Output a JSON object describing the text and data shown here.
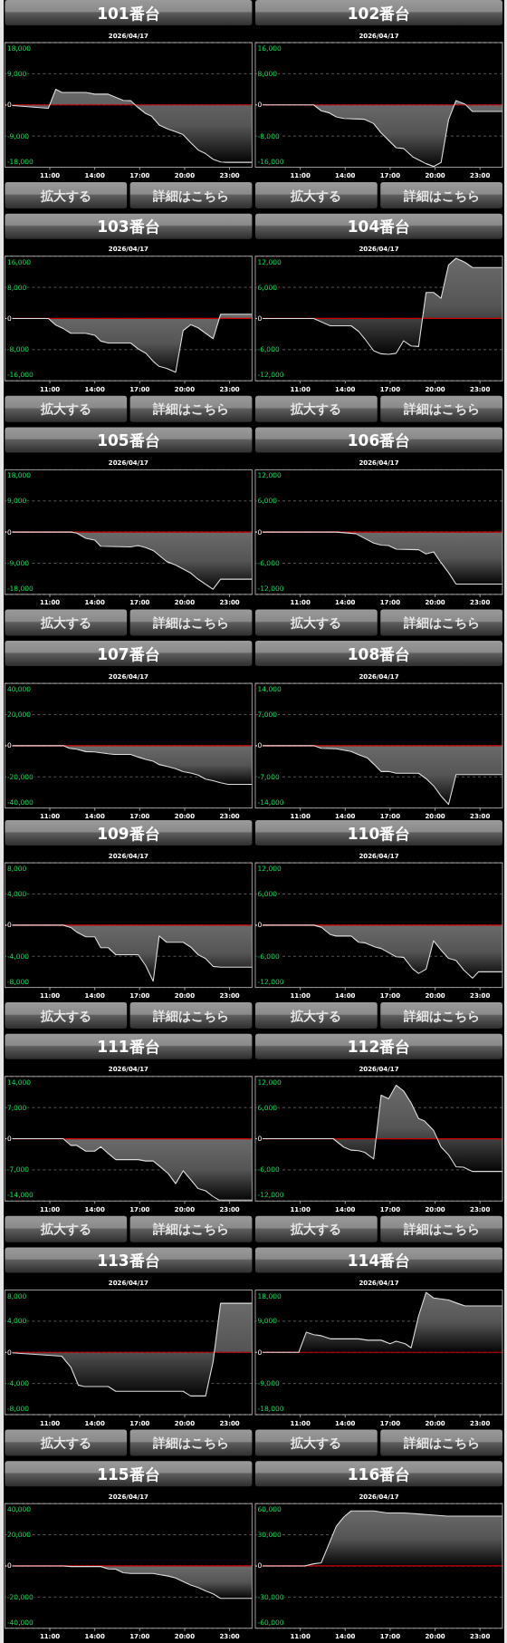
{
  "chart_data": [
    {
      "type": "area",
      "title": "101番台",
      "subtitle": "2026/04/17",
      "color": "#dddddd",
      "grid": "y",
      "xlim": [
        8,
        24.5
      ],
      "xticks": [
        {
          "value": 11,
          "label": "11:00"
        },
        {
          "value": 14,
          "label": "14:00"
        },
        {
          "value": 17,
          "label": "17:00"
        },
        {
          "value": 20,
          "label": "20:00"
        },
        {
          "value": 23,
          "label": "23:00"
        }
      ],
      "ylim": [
        -18000,
        18000
      ],
      "yticks": [
        {
          "value": 18000,
          "label": "18,000"
        },
        {
          "value": 9000,
          "label": "9,000"
        },
        {
          "value": 0,
          "label": "0"
        },
        {
          "value": -9000,
          "label": "-9,000"
        },
        {
          "value": -18000,
          "label": "-18,000"
        }
      ],
      "ref_lines": [
        {
          "axis": "y",
          "value": 0,
          "color": "#cc0000"
        }
      ],
      "annotations": [
        "拡大する",
        "詳細はこちら"
      ],
      "x": [
        8,
        10.9,
        11.4,
        11.8,
        13.4,
        14.0,
        14.9,
        15.9,
        16.4,
        16.9,
        17.4,
        17.8,
        18.3,
        18.9,
        19.3,
        19.9,
        20.4,
        20.9,
        21.4,
        21.9,
        22.4,
        22.8,
        24.5
      ],
      "values": [
        0,
        -1000,
        4500,
        3600,
        3600,
        3100,
        3100,
        1300,
        1200,
        -800,
        -2500,
        -3300,
        -5800,
        -7000,
        -7600,
        -8600,
        -10900,
        -13000,
        -14100,
        -15700,
        -16500,
        -16600,
        -16600
      ]
    },
    {
      "type": "area",
      "title": "102番台",
      "subtitle": "2026/04/17",
      "color": "#dddddd",
      "grid": "y",
      "xlim": [
        8,
        24.5
      ],
      "xticks": [
        {
          "value": 11,
          "label": "11:00"
        },
        {
          "value": 14,
          "label": "14:00"
        },
        {
          "value": 17,
          "label": "17:00"
        },
        {
          "value": 20,
          "label": "20:00"
        },
        {
          "value": 23,
          "label": "23:00"
        }
      ],
      "ylim": [
        -16000,
        16000
      ],
      "yticks": [
        {
          "value": 16000,
          "label": "16,000"
        },
        {
          "value": 8000,
          "label": "8,000"
        },
        {
          "value": 0,
          "label": "0"
        },
        {
          "value": -8000,
          "label": "-8,000"
        },
        {
          "value": -16000,
          "label": "-16,000"
        }
      ],
      "ref_lines": [
        {
          "axis": "y",
          "value": 0,
          "color": "#cc0000"
        }
      ],
      "annotations": [
        "拡大する",
        "詳細はこちら"
      ],
      "x": [
        8,
        11.9,
        12.4,
        12.9,
        13.4,
        13.9,
        15.3,
        15.9,
        16.4,
        17.4,
        17.9,
        18.5,
        19.0,
        19.4,
        19.9,
        20.4,
        20.9,
        21.4,
        22.0,
        22.5,
        24.5
      ],
      "values": [
        0,
        0,
        -1500,
        -2000,
        -3100,
        -3500,
        -3700,
        -4800,
        -7200,
        -11000,
        -11200,
        -13300,
        -14300,
        -15100,
        -15800,
        -14800,
        -3800,
        1100,
        200,
        -1700,
        -1700
      ]
    },
    {
      "type": "area",
      "title": "103番台",
      "subtitle": "2026/04/17",
      "color": "#dddddd",
      "grid": "y",
      "xlim": [
        8,
        24.5
      ],
      "xticks": [
        {
          "value": 11,
          "label": "11:00"
        },
        {
          "value": 14,
          "label": "14:00"
        },
        {
          "value": 17,
          "label": "17:00"
        },
        {
          "value": 20,
          "label": "20:00"
        },
        {
          "value": 23,
          "label": "23:00"
        }
      ],
      "ylim": [
        -16000,
        16000
      ],
      "yticks": [
        {
          "value": 16000,
          "label": "16,000"
        },
        {
          "value": 8000,
          "label": "8,000"
        },
        {
          "value": 0,
          "label": "0"
        },
        {
          "value": -8000,
          "label": "-8,000"
        },
        {
          "value": -16000,
          "label": "-16,000"
        }
      ],
      "ref_lines": [
        {
          "axis": "y",
          "value": 0,
          "color": "#cc0000"
        }
      ],
      "annotations": [
        "拡大する",
        "詳細はこちら"
      ],
      "x": [
        8,
        10.9,
        11.4,
        11.9,
        12.4,
        13.4,
        14.0,
        14.4,
        14.9,
        16.4,
        16.9,
        17.4,
        17.9,
        18.3,
        18.8,
        19.4,
        19.9,
        20.4,
        20.9,
        21.4,
        21.9,
        22.4,
        24.5
      ],
      "values": [
        0,
        0,
        -1700,
        -2600,
        -3800,
        -3800,
        -4300,
        -5800,
        -6300,
        -6300,
        -7800,
        -8900,
        -11000,
        -12300,
        -12800,
        -13800,
        -3100,
        -1600,
        -2400,
        -3800,
        -5200,
        1100,
        1100
      ]
    },
    {
      "type": "area",
      "title": "104番台",
      "subtitle": "2026/04/17",
      "color": "#dddddd",
      "grid": "y",
      "xlim": [
        8,
        24.5
      ],
      "xticks": [
        {
          "value": 11,
          "label": "11:00"
        },
        {
          "value": 14,
          "label": "14:00"
        },
        {
          "value": 17,
          "label": "17:00"
        },
        {
          "value": 20,
          "label": "20:00"
        },
        {
          "value": 23,
          "label": "23:00"
        }
      ],
      "ylim": [
        -12000,
        12000
      ],
      "yticks": [
        {
          "value": 12000,
          "label": "12,000"
        },
        {
          "value": 6000,
          "label": "6,000"
        },
        {
          "value": 0,
          "label": "0"
        },
        {
          "value": -6000,
          "label": "-6,000"
        },
        {
          "value": -12000,
          "label": "-12,000"
        }
      ],
      "ref_lines": [
        {
          "axis": "y",
          "value": 0,
          "color": "#cc0000"
        }
      ],
      "annotations": [
        "拡大する",
        "詳細はこちら"
      ],
      "x": [
        8,
        11.9,
        13.0,
        14.4,
        14.9,
        15.3,
        15.9,
        16.4,
        16.9,
        17.4,
        17.9,
        18.4,
        18.9,
        19.4,
        19.9,
        20.4,
        20.9,
        21.4,
        22.0,
        22.5,
        24.5
      ],
      "values": [
        0,
        0,
        -1400,
        -1400,
        -2500,
        -3900,
        -6200,
        -6800,
        -6900,
        -6700,
        -4300,
        -5300,
        -5400,
        5000,
        5000,
        3900,
        10300,
        11600,
        10800,
        9800,
        9800
      ]
    },
    {
      "type": "area",
      "title": "105番台",
      "subtitle": "2026/04/17",
      "color": "#dddddd",
      "grid": "y",
      "xlim": [
        8,
        24.5
      ],
      "xticks": [
        {
          "value": 11,
          "label": "11:00"
        },
        {
          "value": 14,
          "label": "14:00"
        },
        {
          "value": 17,
          "label": "17:00"
        },
        {
          "value": 20,
          "label": "20:00"
        },
        {
          "value": 23,
          "label": "23:00"
        }
      ],
      "ylim": [
        -18000,
        18000
      ],
      "yticks": [
        {
          "value": 18000,
          "label": "18,000"
        },
        {
          "value": 9000,
          "label": "9,000"
        },
        {
          "value": 0,
          "label": "0"
        },
        {
          "value": -9000,
          "label": "-9,000"
        },
        {
          "value": -18000,
          "label": "-18,000"
        }
      ],
      "ref_lines": [
        {
          "axis": "y",
          "value": 0,
          "color": "#cc0000"
        }
      ],
      "annotations": [
        "拡大する",
        "詳細はこちら"
      ],
      "x": [
        8,
        12.4,
        12.8,
        13.4,
        14.0,
        14.4,
        16.4,
        16.9,
        17.4,
        17.9,
        18.8,
        19.4,
        20.4,
        20.8,
        21.4,
        21.9,
        22.4,
        24.5
      ],
      "values": [
        0,
        0,
        -300,
        -1800,
        -2300,
        -4100,
        -4300,
        -3900,
        -4500,
        -5300,
        -8500,
        -9500,
        -11800,
        -13300,
        -15100,
        -16500,
        -13600,
        -13600
      ]
    },
    {
      "type": "area",
      "title": "106番台",
      "subtitle": "2026/04/17",
      "color": "#dddddd",
      "grid": "y",
      "xlim": [
        8,
        24.5
      ],
      "xticks": [
        {
          "value": 11,
          "label": "11:00"
        },
        {
          "value": 14,
          "label": "14:00"
        },
        {
          "value": 17,
          "label": "17:00"
        },
        {
          "value": 20,
          "label": "20:00"
        },
        {
          "value": 23,
          "label": "23:00"
        }
      ],
      "ylim": [
        -12000,
        12000
      ],
      "yticks": [
        {
          "value": 12000,
          "label": "12,000"
        },
        {
          "value": 6000,
          "label": "6,000"
        },
        {
          "value": 0,
          "label": "0"
        },
        {
          "value": -6000,
          "label": "-6,000"
        },
        {
          "value": -12000,
          "label": "-12,000"
        }
      ],
      "ref_lines": [
        {
          "axis": "y",
          "value": 0,
          "color": "#cc0000"
        }
      ],
      "annotations": [
        "拡大する",
        "詳細はこちら"
      ],
      "x": [
        8,
        13.4,
        14.7,
        15.9,
        16.4,
        16.9,
        17.4,
        18.9,
        19.4,
        19.9,
        20.4,
        20.9,
        21.4,
        24.5
      ],
      "values": [
        0,
        0,
        -300,
        -2100,
        -2500,
        -2600,
        -3300,
        -3400,
        -4200,
        -3800,
        -5900,
        -7800,
        -10000,
        -10000
      ]
    },
    {
      "type": "area",
      "title": "107番台",
      "subtitle": "2026/04/17",
      "color": "#dddddd",
      "grid": "y",
      "xlim": [
        8,
        24.5
      ],
      "xticks": [
        {
          "value": 11,
          "label": "11:00"
        },
        {
          "value": 14,
          "label": "14:00"
        },
        {
          "value": 17,
          "label": "17:00"
        },
        {
          "value": 20,
          "label": "20:00"
        },
        {
          "value": 23,
          "label": "23:00"
        }
      ],
      "ylim": [
        -40000,
        40000
      ],
      "yticks": [
        {
          "value": 40000,
          "label": "40,000"
        },
        {
          "value": 20000,
          "label": "20,000"
        },
        {
          "value": 0,
          "label": "0"
        },
        {
          "value": -20000,
          "label": "-20,000"
        },
        {
          "value": -40000,
          "label": "-40,000"
        }
      ],
      "ref_lines": [
        {
          "axis": "y",
          "value": 0,
          "color": "#cc0000"
        }
      ],
      "x": [
        8,
        11.9,
        12.3,
        12.8,
        13.4,
        14.0,
        14.9,
        15.3,
        16.4,
        16.9,
        17.4,
        17.9,
        18.3,
        18.9,
        19.4,
        19.9,
        20.4,
        20.9,
        21.4,
        21.9,
        22.4,
        22.9,
        24.5
      ],
      "values": [
        0,
        0,
        -1700,
        -2300,
        -3800,
        -4000,
        -5200,
        -5600,
        -5600,
        -7300,
        -8800,
        -10000,
        -12100,
        -13500,
        -14800,
        -16700,
        -17500,
        -18800,
        -21500,
        -22500,
        -23800,
        -24800,
        -24800
      ]
    },
    {
      "type": "area",
      "title": "108番台",
      "subtitle": "2026/04/17",
      "color": "#dddddd",
      "grid": "y",
      "xlim": [
        8,
        24.5
      ],
      "xticks": [
        {
          "value": 11,
          "label": "11:00"
        },
        {
          "value": 14,
          "label": "14:00"
        },
        {
          "value": 17,
          "label": "17:00"
        },
        {
          "value": 20,
          "label": "20:00"
        },
        {
          "value": 23,
          "label": "23:00"
        }
      ],
      "ylim": [
        -14000,
        14000
      ],
      "yticks": [
        {
          "value": 14000,
          "label": "14,000"
        },
        {
          "value": 7000,
          "label": "7,000"
        },
        {
          "value": 0,
          "label": "0"
        },
        {
          "value": -7000,
          "label": "-7,000"
        },
        {
          "value": -14000,
          "label": "-14,000"
        }
      ],
      "ref_lines": [
        {
          "axis": "y",
          "value": 0,
          "color": "#cc0000"
        }
      ],
      "x": [
        8,
        11.9,
        12.4,
        13.4,
        14.4,
        14.9,
        15.5,
        15.9,
        16.4,
        16.9,
        17.4,
        18.9,
        19.4,
        19.9,
        20.4,
        20.9,
        21.4,
        24.5
      ],
      "values": [
        0,
        0,
        -600,
        -700,
        -1300,
        -2000,
        -2800,
        -4100,
        -5800,
        -5800,
        -6200,
        -6200,
        -7400,
        -9000,
        -11300,
        -13200,
        -6500,
        -6500
      ]
    },
    {
      "type": "area",
      "title": "109番台",
      "subtitle": "2026/04/17",
      "color": "#dddddd",
      "grid": "y",
      "xlim": [
        8,
        24.5
      ],
      "xticks": [
        {
          "value": 11,
          "label": "11:00"
        },
        {
          "value": 14,
          "label": "14:00"
        },
        {
          "value": 17,
          "label": "17:00"
        },
        {
          "value": 20,
          "label": "20:00"
        },
        {
          "value": 23,
          "label": "23:00"
        }
      ],
      "ylim": [
        -8000,
        8000
      ],
      "yticks": [
        {
          "value": 8000,
          "label": "8,000"
        },
        {
          "value": 4000,
          "label": "4,000"
        },
        {
          "value": 0,
          "label": "0"
        },
        {
          "value": -4000,
          "label": "-4,000"
        },
        {
          "value": -8000,
          "label": "-8,000"
        }
      ],
      "ref_lines": [
        {
          "axis": "y",
          "value": 0,
          "color": "#cc0000"
        }
      ],
      "annotations": [
        "拡大する",
        "詳細はこちら"
      ],
      "x": [
        8,
        11.9,
        12.4,
        12.8,
        13.4,
        14.0,
        14.4,
        14.9,
        15.4,
        16.9,
        17.4,
        17.9,
        18.3,
        18.8,
        19.9,
        20.4,
        20.9,
        21.4,
        21.9,
        22.4,
        23.0,
        24.5
      ],
      "values": [
        0,
        0,
        -300,
        -900,
        -1500,
        -1500,
        -2900,
        -2900,
        -3800,
        -3800,
        -5200,
        -7200,
        -1400,
        -2200,
        -2200,
        -2800,
        -3800,
        -4300,
        -5300,
        -5400,
        -5400,
        -5400
      ]
    },
    {
      "type": "area",
      "title": "110番台",
      "subtitle": "2026/04/17",
      "color": "#dddddd",
      "grid": "y",
      "xlim": [
        8,
        24.5
      ],
      "xticks": [
        {
          "value": 11,
          "label": "11:00"
        },
        {
          "value": 14,
          "label": "14:00"
        },
        {
          "value": 17,
          "label": "17:00"
        },
        {
          "value": 20,
          "label": "20:00"
        },
        {
          "value": 23,
          "label": "23:00"
        }
      ],
      "ylim": [
        -12000,
        12000
      ],
      "yticks": [
        {
          "value": 12000,
          "label": "12,000"
        },
        {
          "value": 6000,
          "label": "6,000"
        },
        {
          "value": 0,
          "label": "0"
        },
        {
          "value": -6000,
          "label": "-6,000"
        },
        {
          "value": -12000,
          "label": "-12,000"
        }
      ],
      "ref_lines": [
        {
          "axis": "y",
          "value": 0,
          "color": "#cc0000"
        }
      ],
      "annotations": [
        "拡大する",
        "詳細はこちら"
      ],
      "x": [
        8,
        11.9,
        12.4,
        13.0,
        13.4,
        14.4,
        14.9,
        15.3,
        16.0,
        16.4,
        17.4,
        17.9,
        18.5,
        18.9,
        19.4,
        19.9,
        20.4,
        20.9,
        21.4,
        21.9,
        22.5,
        22.9,
        24.5
      ],
      "values": [
        0,
        0,
        -400,
        -1800,
        -2100,
        -2100,
        -3300,
        -3400,
        -4200,
        -4500,
        -6100,
        -6200,
        -8400,
        -9300,
        -8500,
        -3000,
        -4800,
        -6400,
        -6800,
        -8600,
        -10200,
        -9000,
        -9000
      ]
    },
    {
      "type": "area",
      "title": "111番台",
      "subtitle": "2026/04/17",
      "color": "#dddddd",
      "grid": "y",
      "xlim": [
        8,
        24.5
      ],
      "xticks": [
        {
          "value": 11,
          "label": "11:00"
        },
        {
          "value": 14,
          "label": "14:00"
        },
        {
          "value": 17,
          "label": "17:00"
        },
        {
          "value": 20,
          "label": "20:00"
        },
        {
          "value": 23,
          "label": "23:00"
        }
      ],
      "ylim": [
        -14000,
        14000
      ],
      "yticks": [
        {
          "value": 14000,
          "label": "14,000"
        },
        {
          "value": 7000,
          "label": "7,000"
        },
        {
          "value": 0,
          "label": "0"
        },
        {
          "value": -7000,
          "label": "-7,000"
        },
        {
          "value": -14000,
          "label": "-14,000"
        }
      ],
      "ref_lines": [
        {
          "axis": "y",
          "value": 0,
          "color": "#cc0000"
        }
      ],
      "annotations": [
        "拡大する",
        "詳細はこちら"
      ],
      "x": [
        8,
        11.9,
        12.4,
        12.8,
        13.4,
        14.0,
        14.4,
        14.9,
        15.4,
        16.9,
        17.4,
        17.9,
        18.3,
        18.9,
        19.4,
        19.9,
        20.4,
        20.9,
        21.4,
        21.9,
        22.3,
        24.5
      ],
      "values": [
        0,
        0,
        -1500,
        -1500,
        -2800,
        -2800,
        -1800,
        -3300,
        -4700,
        -4700,
        -5000,
        -5000,
        -6100,
        -7800,
        -10100,
        -7200,
        -9200,
        -11200,
        -11700,
        -13000,
        -13800,
        -13800
      ]
    },
    {
      "type": "area",
      "title": "112番台",
      "subtitle": "2026/04/17",
      "color": "#dddddd",
      "grid": "y",
      "xlim": [
        8,
        24.5
      ],
      "xticks": [
        {
          "value": 11,
          "label": "11:00"
        },
        {
          "value": 14,
          "label": "14:00"
        },
        {
          "value": 17,
          "label": "17:00"
        },
        {
          "value": 20,
          "label": "20:00"
        },
        {
          "value": 23,
          "label": "23:00"
        }
      ],
      "ylim": [
        -12000,
        12000
      ],
      "yticks": [
        {
          "value": 12000,
          "label": "12,000"
        },
        {
          "value": 6000,
          "label": "6,000"
        },
        {
          "value": 0,
          "label": "0"
        },
        {
          "value": -6000,
          "label": "-6,000"
        },
        {
          "value": -12000,
          "label": "-12,000"
        }
      ],
      "ref_lines": [
        {
          "axis": "y",
          "value": 0,
          "color": "#cc0000"
        }
      ],
      "annotations": [
        "拡大する",
        "詳細はこちら"
      ],
      "x": [
        8,
        13.2,
        13.9,
        14.4,
        14.9,
        15.3,
        15.9,
        16.4,
        16.9,
        17.4,
        17.9,
        18.4,
        18.9,
        19.3,
        19.9,
        20.4,
        20.9,
        21.4,
        21.9,
        22.5,
        24.5
      ],
      "values": [
        0,
        0,
        -1600,
        -2200,
        -2300,
        -2600,
        -3900,
        8400,
        7700,
        10300,
        9200,
        6900,
        3900,
        3400,
        1600,
        -1600,
        -3100,
        -5400,
        -5500,
        -6300,
        -6300
      ]
    },
    {
      "type": "area",
      "title": "113番台",
      "subtitle": "2026/04/17",
      "color": "#dddddd",
      "grid": "y",
      "xlim": [
        8,
        24.5
      ],
      "xticks": [
        {
          "value": 11,
          "label": "11:00"
        },
        {
          "value": 14,
          "label": "14:00"
        },
        {
          "value": 17,
          "label": "17:00"
        },
        {
          "value": 20,
          "label": "20:00"
        },
        {
          "value": 23,
          "label": "23:00"
        }
      ],
      "ylim": [
        -8000,
        8000
      ],
      "yticks": [
        {
          "value": 8000,
          "label": "8,000"
        },
        {
          "value": 4000,
          "label": "4,000"
        },
        {
          "value": 0,
          "label": "0"
        },
        {
          "value": -4000,
          "label": "-4,000"
        },
        {
          "value": -8000,
          "label": "-8,000"
        }
      ],
      "ref_lines": [
        {
          "axis": "y",
          "value": 0,
          "color": "#cc0000"
        }
      ],
      "annotations": [
        "拡大する",
        "詳細はこちら"
      ],
      "x": [
        8,
        11.8,
        12.4,
        12.9,
        13.3,
        14.9,
        15.4,
        19.9,
        20.4,
        21.4,
        21.9,
        22.4,
        24.5
      ],
      "values": [
        0,
        -500,
        -1900,
        -4200,
        -4400,
        -4400,
        -5000,
        -5000,
        -5600,
        -5600,
        -1200,
        6300,
        6300
      ]
    },
    {
      "type": "area",
      "title": "114番台",
      "subtitle": "2026/04/17",
      "color": "#dddddd",
      "grid": "y",
      "xlim": [
        8,
        24.5
      ],
      "xticks": [
        {
          "value": 11,
          "label": "11:00"
        },
        {
          "value": 14,
          "label": "14:00"
        },
        {
          "value": 17,
          "label": "17:00"
        },
        {
          "value": 20,
          "label": "20:00"
        },
        {
          "value": 23,
          "label": "23:00"
        }
      ],
      "ylim": [
        -18000,
        18000
      ],
      "yticks": [
        {
          "value": 18000,
          "label": "18,000"
        },
        {
          "value": 9000,
          "label": "9,000"
        },
        {
          "value": 0,
          "label": "0"
        },
        {
          "value": -9000,
          "label": "-9,000"
        },
        {
          "value": -18000,
          "label": "-18,000"
        }
      ],
      "ref_lines": [
        {
          "axis": "y",
          "value": 0,
          "color": "#cc0000"
        }
      ],
      "annotations": [
        "拡大する",
        "詳細はこちら"
      ],
      "x": [
        8,
        10.9,
        11.4,
        11.9,
        12.4,
        13.0,
        14.9,
        15.5,
        16.4,
        17.0,
        17.4,
        18.0,
        18.4,
        18.9,
        19.4,
        19.9,
        20.9,
        21.4,
        22.0,
        24.5
      ],
      "values": [
        0,
        0,
        5800,
        5100,
        4800,
        3900,
        3900,
        3500,
        3500,
        2500,
        3200,
        2500,
        1300,
        10500,
        17300,
        15700,
        15100,
        14300,
        13400,
        13400
      ]
    },
    {
      "type": "area",
      "title": "115番台",
      "subtitle": "2026/04/17",
      "color": "#dddddd",
      "grid": "y",
      "xlim": [
        8,
        24.5
      ],
      "xticks": [
        {
          "value": 11,
          "label": "11:00"
        },
        {
          "value": 14,
          "label": "14:00"
        },
        {
          "value": 17,
          "label": "17:00"
        },
        {
          "value": 20,
          "label": "20:00"
        },
        {
          "value": 23,
          "label": "23:00"
        }
      ],
      "ylim": [
        -40000,
        40000
      ],
      "yticks": [
        {
          "value": 40000,
          "label": "40,000"
        },
        {
          "value": 20000,
          "label": "20,000"
        },
        {
          "value": 0,
          "label": "0"
        },
        {
          "value": -20000,
          "label": "-20,000"
        },
        {
          "value": -40000,
          "label": "-40,000"
        }
      ],
      "ref_lines": [
        {
          "axis": "y",
          "value": 0,
          "color": "#cc0000"
        }
      ],
      "x": [
        8,
        11.9,
        12.4,
        14.4,
        14.9,
        15.4,
        15.9,
        16.4,
        17.9,
        18.3,
        18.9,
        19.4,
        19.9,
        20.4,
        20.9,
        21.4,
        21.9,
        22.4,
        24.5
      ],
      "values": [
        0,
        0,
        -400,
        -400,
        -1900,
        -2100,
        -4400,
        -4800,
        -4800,
        -5600,
        -6500,
        -7700,
        -10000,
        -12300,
        -13800,
        -16000,
        -17900,
        -20800,
        -20800
      ]
    },
    {
      "type": "area",
      "title": "116番台",
      "subtitle": "2026/04/17",
      "color": "#dddddd",
      "grid": "y",
      "xlim": [
        8,
        24.5
      ],
      "xticks": [
        {
          "value": 11,
          "label": "11:00"
        },
        {
          "value": 14,
          "label": "14:00"
        },
        {
          "value": 17,
          "label": "17:00"
        },
        {
          "value": 20,
          "label": "20:00"
        },
        {
          "value": 23,
          "label": "23:00"
        }
      ],
      "ylim": [
        -60000,
        60000
      ],
      "yticks": [
        {
          "value": 60000,
          "label": "60,000"
        },
        {
          "value": 30000,
          "label": "30,000"
        },
        {
          "value": 0,
          "label": "0"
        },
        {
          "value": -30000,
          "label": "-30,000"
        },
        {
          "value": -60000,
          "label": "-60,000"
        }
      ],
      "ref_lines": [
        {
          "axis": "y",
          "value": 0,
          "color": "#cc0000"
        }
      ],
      "x": [
        8,
        11.3,
        11.9,
        12.4,
        13.4,
        13.9,
        14.4,
        15.9,
        16.8,
        17.9,
        18.9,
        19.8,
        20.8,
        24.5
      ],
      "values": [
        0,
        0,
        2000,
        3000,
        38000,
        47000,
        53000,
        53000,
        51000,
        51000,
        50000,
        49000,
        48000,
        48000
      ]
    }
  ]
}
